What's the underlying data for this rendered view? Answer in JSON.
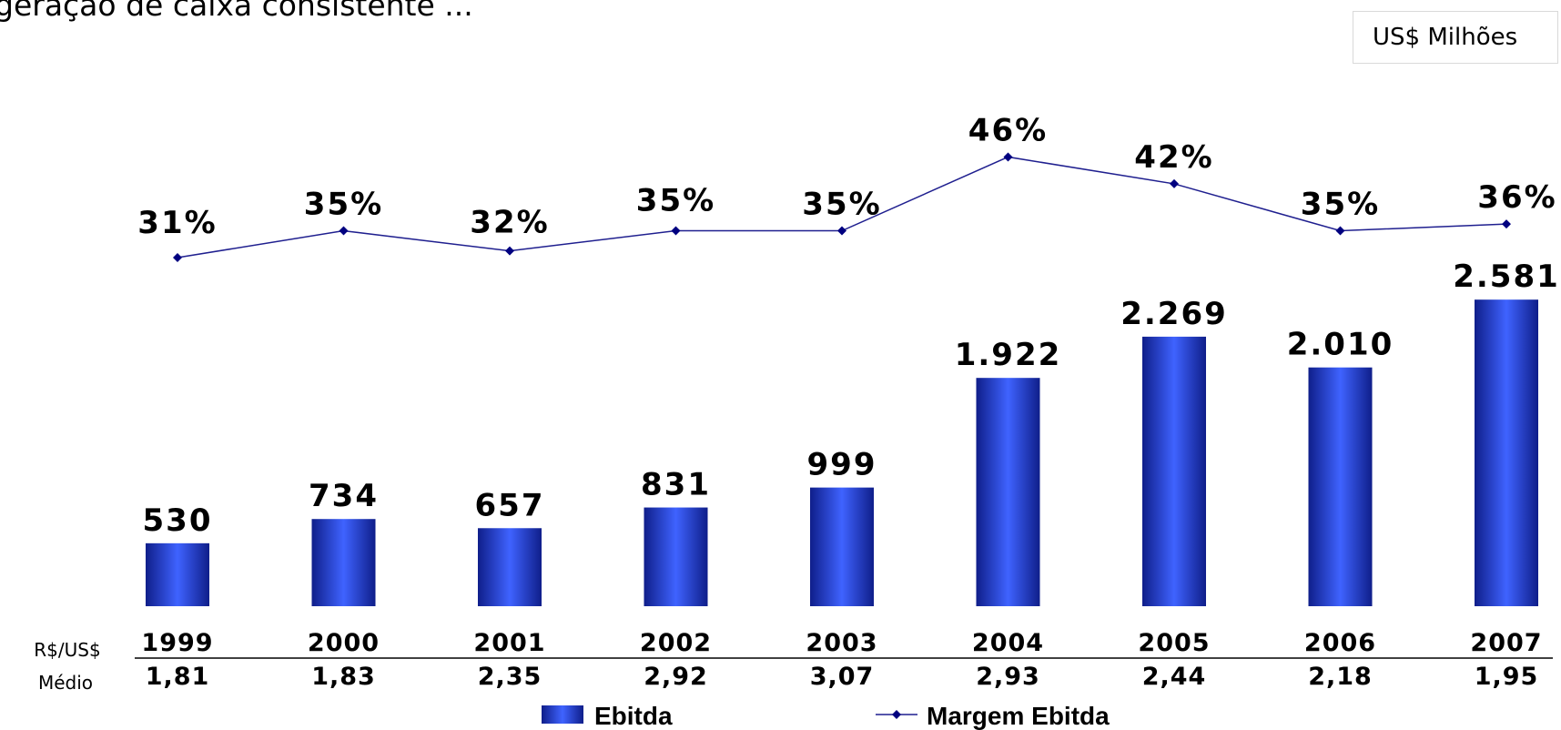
{
  "heading": "geração de caixa consistente ...",
  "unit": "US$ Milhões",
  "chart_data": {
    "type": "bar",
    "categories": [
      "1999",
      "2000",
      "2001",
      "2002",
      "2003",
      "2004",
      "2005",
      "2006",
      "2007"
    ],
    "series": [
      {
        "name": "Ebitda",
        "type": "bar",
        "values": [
          530,
          734,
          657,
          831,
          999,
          1922,
          2269,
          2010,
          2581
        ],
        "labels": [
          "530",
          "734",
          "657",
          "831",
          "999",
          "1.922",
          "2.269",
          "2.010",
          "2.581"
        ],
        "color": "#2541d4"
      },
      {
        "name": "Margem Ebitda",
        "type": "line",
        "values": [
          31,
          35,
          32,
          35,
          35,
          46,
          42,
          35,
          36
        ],
        "labels": [
          "31%",
          "35%",
          "32%",
          "35%",
          "35%",
          "46%",
          "42%",
          "35%",
          "36%"
        ],
        "color": "#1f1f8f"
      }
    ],
    "fx_row": {
      "label_line1": "R$/US$",
      "label_line2": "Médio",
      "values": [
        "1,81",
        "1,83",
        "2,35",
        "2,92",
        "3,07",
        "2,93",
        "2,44",
        "2,18",
        "1,95"
      ]
    },
    "legend_position": "bottom-center",
    "grid": false
  }
}
